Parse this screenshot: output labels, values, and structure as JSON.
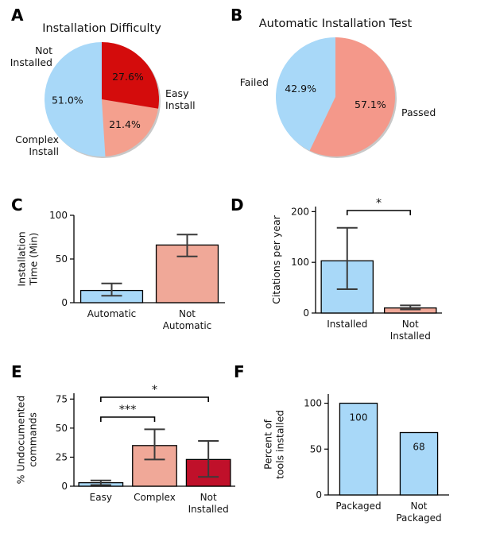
{
  "chart_data": [
    {
      "panel": "A",
      "type": "pie",
      "title": "Installation Difficulty",
      "slices": [
        {
          "label": "Easy Install",
          "value": 51.0,
          "pct_label": "51.0%",
          "color": "#a8d8f8"
        },
        {
          "label": "Complex Install",
          "value": 21.4,
          "pct_label": "21.4%",
          "color": "#f4a08e"
        },
        {
          "label": "Not Installed",
          "value": 27.6,
          "pct_label": "27.6%",
          "color": "#d40c0c"
        }
      ]
    },
    {
      "panel": "B",
      "type": "pie",
      "title": "Automatic Installation Test",
      "slices": [
        {
          "label": "Passed",
          "value": 42.9,
          "pct_label": "42.9%",
          "color": "#a8d8f8"
        },
        {
          "label": "Failed",
          "value": 57.1,
          "pct_label": "57.1%",
          "color": "#f4988a"
        }
      ]
    },
    {
      "panel": "C",
      "type": "bar",
      "ylabel": "Installation Time (Min)",
      "categories": [
        "Automatic",
        "Not Automatic"
      ],
      "values": [
        14,
        66
      ],
      "error_low": [
        8,
        53
      ],
      "error_high": [
        22,
        78
      ],
      "colors": [
        "#a8d8f8",
        "#f0a898"
      ],
      "ylim": [
        0,
        100
      ],
      "yticks": [
        0,
        50,
        100
      ]
    },
    {
      "panel": "D",
      "type": "bar",
      "ylabel": "Citations per year",
      "categories": [
        "Installed",
        "Not Installed"
      ],
      "values": [
        103,
        10
      ],
      "error_low": [
        47,
        7
      ],
      "error_high": [
        168,
        15
      ],
      "colors": [
        "#a8d8f8",
        "#f0a898"
      ],
      "ylim": [
        0,
        210
      ],
      "yticks": [
        0,
        100,
        200
      ],
      "significance": [
        {
          "from": 0,
          "to": 1,
          "label": "*"
        }
      ]
    },
    {
      "panel": "E",
      "type": "bar",
      "ylabel": "% Undocumented commands",
      "categories": [
        "Easy",
        "Complex",
        "Not Installed"
      ],
      "values": [
        3,
        35,
        23
      ],
      "error_low": [
        1,
        23,
        8
      ],
      "error_high": [
        5,
        49,
        39
      ],
      "colors": [
        "#a8d8f8",
        "#f0a898",
        "#c0102a"
      ],
      "ylim": [
        0,
        80
      ],
      "yticks": [
        0,
        25,
        50,
        75
      ],
      "significance": [
        {
          "from": 0,
          "to": 1,
          "label": "***"
        },
        {
          "from": 0,
          "to": 2,
          "label": "*"
        }
      ]
    },
    {
      "panel": "F",
      "type": "bar",
      "ylabel": "Percent of tools installed",
      "categories": [
        "Packaged",
        "Not Packaged"
      ],
      "values": [
        100,
        68
      ],
      "data_labels": [
        "100",
        "68"
      ],
      "colors": [
        "#a8d8f8",
        "#a8d8f8"
      ],
      "ylim": [
        0,
        110
      ],
      "yticks": [
        0,
        50,
        100
      ]
    }
  ]
}
